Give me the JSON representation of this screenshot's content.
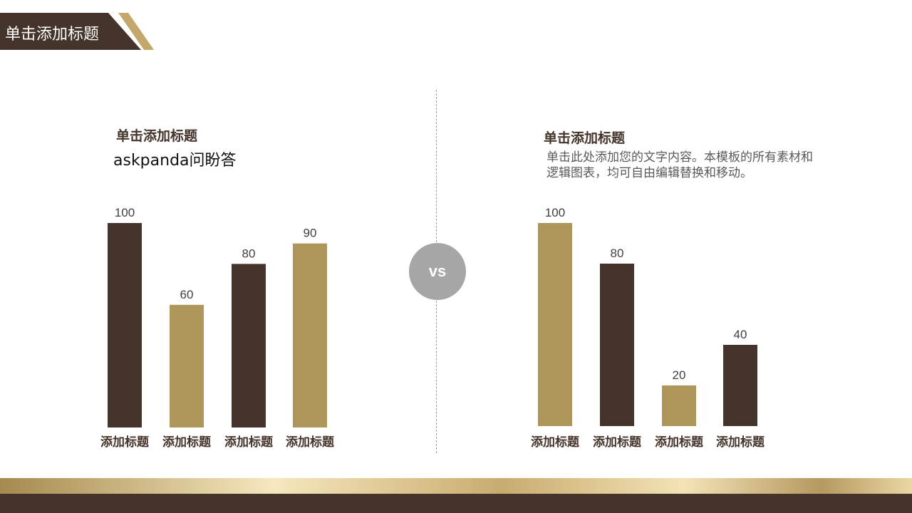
{
  "header": {
    "title": "单击添加标题"
  },
  "vs_label": "vs",
  "left_panel": {
    "subtitle": "单击添加标题",
    "extra_text": "askpanda问盼答"
  },
  "right_panel": {
    "subtitle": "单击添加标题",
    "description": "单击此处添加您的文字内容。本模板的所有素材和逻辑图表，均可自由编辑替换和移动。"
  },
  "colors": {
    "dark_brown": "#45342b",
    "gold": "#ae955a",
    "vs_gray": "#a6a6a6"
  },
  "chart_data": [
    {
      "type": "bar",
      "categories": [
        "添加标题",
        "添加标题",
        "添加标题",
        "添加标题"
      ],
      "values": [
        100,
        60,
        80,
        90
      ],
      "bar_colors": [
        "#45342b",
        "#ae955a",
        "#45342b",
        "#ae955a"
      ],
      "data_labels": true,
      "grid": false
    },
    {
      "type": "bar",
      "categories": [
        "添加标题",
        "添加标题",
        "添加标题",
        "添加标题"
      ],
      "values": [
        100,
        80,
        20,
        40
      ],
      "bar_colors": [
        "#ae955a",
        "#45342b",
        "#ae955a",
        "#45342b"
      ],
      "data_labels": true,
      "grid": false
    }
  ]
}
